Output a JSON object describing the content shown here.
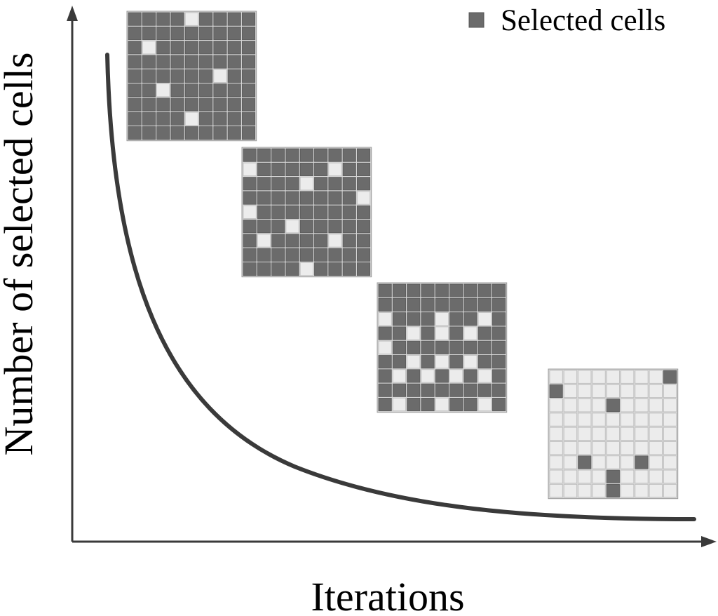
{
  "diagram": {
    "axis_x_label": "Iterations",
    "axis_y_label": "Number of selected cells",
    "legend": {
      "label": "Selected cells",
      "swatch_color": "#6b6b6b"
    },
    "colors": {
      "selected_cell": "#6b6b6b",
      "unselected_cell": "#ececec",
      "curve": "#3a3a3a"
    },
    "grids": [
      {
        "name": "grid-iteration-early",
        "size": 9,
        "rows": [
          "111101111",
          "111111111",
          "101111111",
          "111111111",
          "111111011",
          "110111111",
          "111111111",
          "111101111",
          "111111111"
        ]
      },
      {
        "name": "grid-iteration-second",
        "size": 9,
        "rows": [
          "111111111",
          "011111011",
          "111101111",
          "111111110",
          "011111111",
          "111011111",
          "101111011",
          "111111111",
          "111101111"
        ]
      },
      {
        "name": "grid-iteration-third",
        "size": 9,
        "rows": [
          "111111111",
          "111111111",
          "011101101",
          "110101011",
          "011111111",
          "110101011",
          "101010101",
          "111111111",
          "101101101"
        ]
      },
      {
        "name": "grid-iteration-late",
        "size": 9,
        "rows": [
          "000000001",
          "100000000",
          "000010000",
          "000000000",
          "000000000",
          "000000000",
          "001000100",
          "000010000",
          "000010000"
        ]
      }
    ]
  }
}
